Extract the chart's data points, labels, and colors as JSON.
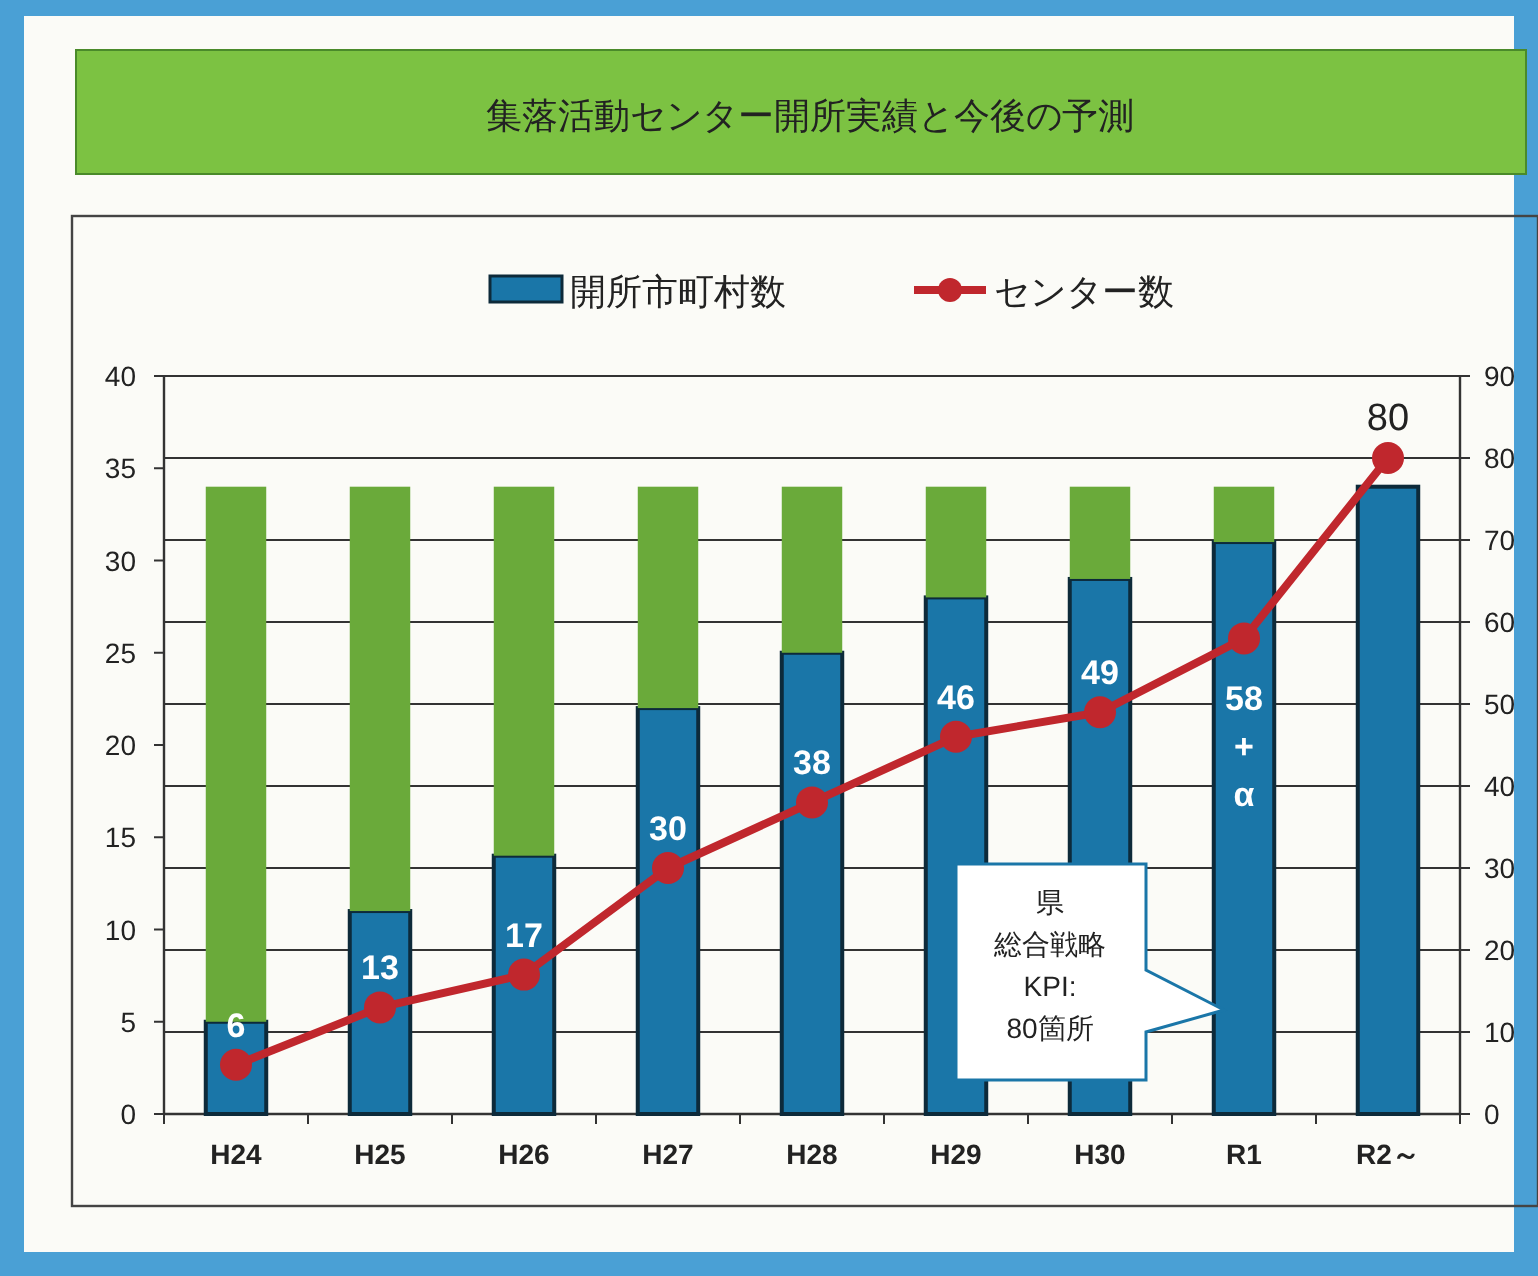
{
  "chart_data": {
    "type": "bar",
    "title": "集落活動センター開所実績と今後の予測",
    "categories": [
      "H24",
      "H25",
      "H26",
      "H27",
      "H28",
      "H29",
      "H30",
      "R1",
      "R2～"
    ],
    "stacked": true,
    "series": [
      {
        "name": "開所市町村数",
        "color": "#1a76a8",
        "values": [
          5,
          11,
          14,
          22,
          25,
          28,
          29,
          31,
          34
        ]
      },
      {
        "color": "#6aaa3a",
        "values": [
          29,
          23,
          20,
          12,
          9,
          6,
          5,
          3,
          0
        ]
      },
      {
        "name": "センター数",
        "type": "line",
        "axis": "y2",
        "color": "#c0272d",
        "marker": "circle",
        "values": [
          6,
          13,
          17,
          30,
          38,
          46,
          49,
          58,
          80
        ],
        "value_labels": [
          "6",
          "13",
          "17",
          "30",
          "38",
          "46",
          "49",
          "58\n+\nα",
          "80"
        ]
      }
    ],
    "ylim": [
      0,
      40
    ],
    "yticks": [
      0,
      5,
      10,
      15,
      20,
      25,
      30,
      35,
      40
    ],
    "y2lim": [
      0,
      90
    ],
    "y2ticks": [
      0,
      10,
      20,
      30,
      40,
      50,
      60,
      70,
      80,
      90
    ],
    "grid": "y",
    "legend": "top",
    "annotations": [
      "県",
      "総合戦略",
      "KPI:",
      "80箇所"
    ]
  }
}
